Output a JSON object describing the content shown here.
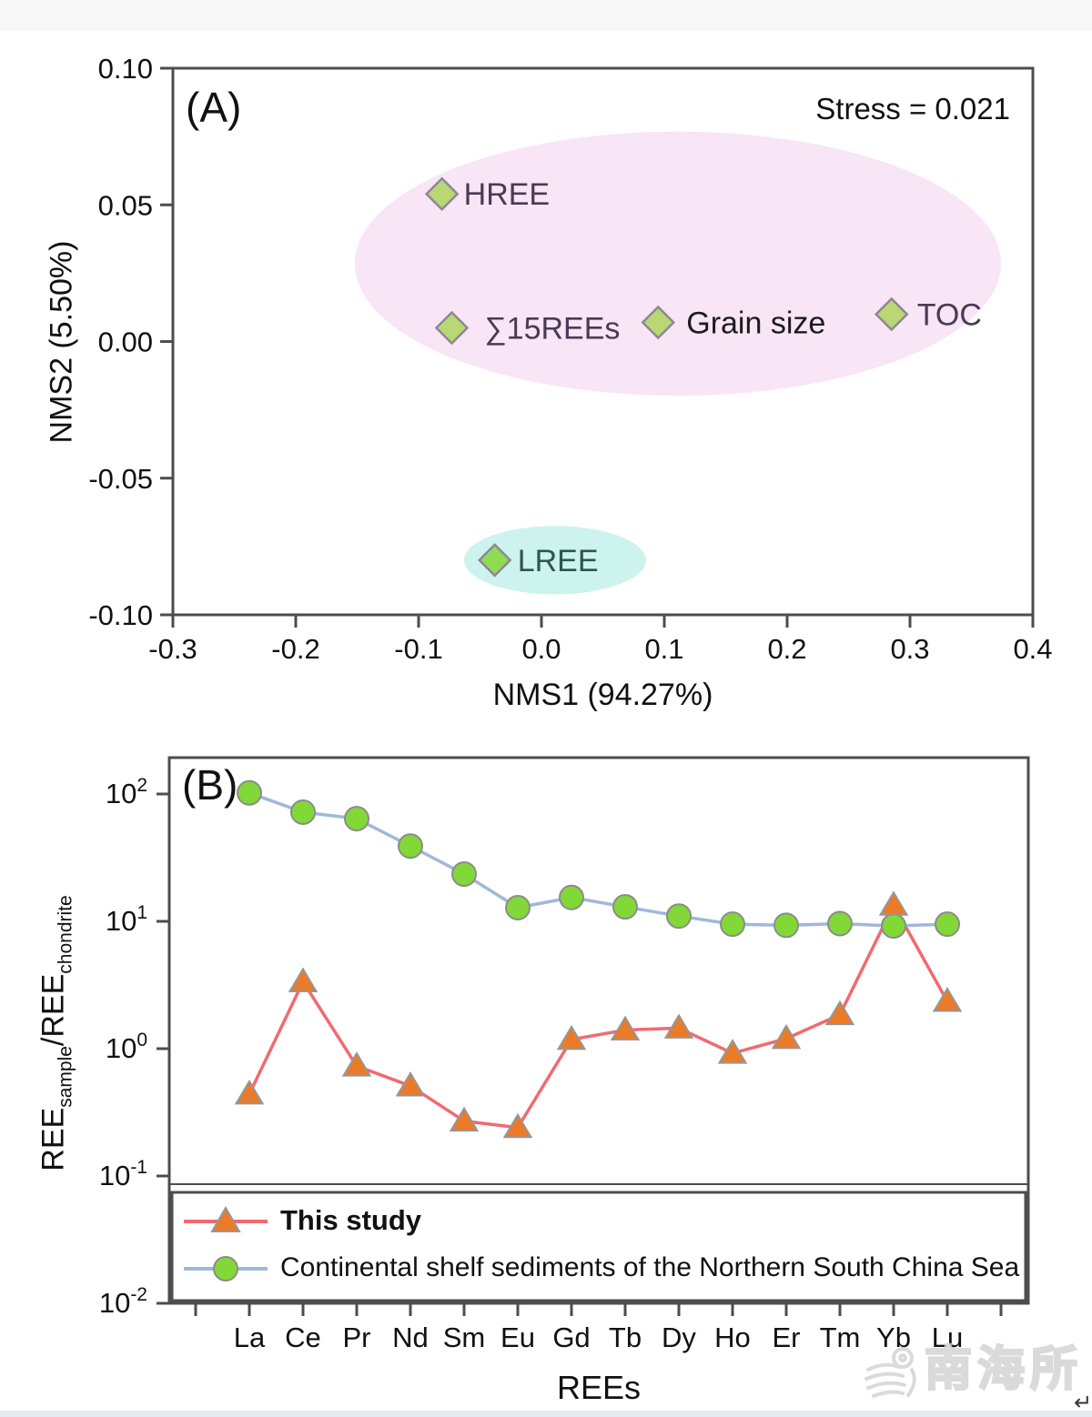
{
  "watermark": {
    "text": "南海所"
  },
  "footer": {
    "return_mark": "↵"
  },
  "chart_data": [
    {
      "id": "A",
      "type": "scatter",
      "panel_label": "(A)",
      "annotation": "Stress = 0.021",
      "xlabel": "NMS1 (94.27%)",
      "ylabel": "NMS2 (5.50%)",
      "xlim": [
        -0.3,
        0.4
      ],
      "ylim": [
        -0.1,
        0.1
      ],
      "grid": false,
      "x_ticks": [
        {
          "v": -0.3,
          "label": "-0.3"
        },
        {
          "v": -0.2,
          "label": "-0.2"
        },
        {
          "v": -0.1,
          "label": "-0.1"
        },
        {
          "v": 0.0,
          "label": "0.0"
        },
        {
          "v": 0.1,
          "label": "0.1"
        },
        {
          "v": 0.2,
          "label": "0.2"
        },
        {
          "v": 0.3,
          "label": "0.3"
        },
        {
          "v": 0.4,
          "label": "0.4"
        }
      ],
      "y_ticks": [
        {
          "v": 0.1,
          "label": "0.10"
        },
        {
          "v": 0.05,
          "label": "0.05"
        },
        {
          "v": 0.0,
          "label": "0.00"
        },
        {
          "v": -0.05,
          "label": "-0.05"
        },
        {
          "v": -0.1,
          "label": "-0.10"
        }
      ],
      "marker": "diamond",
      "points": [
        {
          "name": "HREE",
          "x": -0.081,
          "y": 0.054,
          "label": "HREE",
          "label_color": "#4a3a55",
          "marker_fill": "#b9d873",
          "label_dx": 19
        },
        {
          "name": "sum15REEs",
          "x": -0.073,
          "y": 0.005,
          "label": "∑15REEs",
          "label_color": "#4a3a55",
          "marker_fill": "#b9d873",
          "label_dx": 31
        },
        {
          "name": "grain-size",
          "x": 0.095,
          "y": 0.007,
          "label": "Grain size",
          "label_color": "#1c1c1c",
          "marker_fill": "#b9d873",
          "label_dx": 26
        },
        {
          "name": "TOC",
          "x": 0.285,
          "y": 0.01,
          "label": "TOC",
          "label_color": "#4a3a55",
          "marker_fill": "#b9d873",
          "label_dx": 23
        },
        {
          "name": "LREE",
          "x": -0.038,
          "y": -0.08,
          "label": "LREE",
          "label_color": "#2b574d",
          "marker_fill": "#8fdc52",
          "label_dx": 20
        }
      ],
      "ellipses": [
        {
          "name": "pink-cluster",
          "cx": 0.111,
          "cy": 0.0285,
          "rx": 0.263,
          "ry": 0.0483,
          "fill": "#f8e5f5"
        },
        {
          "name": "cyan-cluster",
          "cx": 0.011,
          "cy": -0.08,
          "rx": 0.074,
          "ry": 0.0125,
          "fill": "#cdf3ee"
        }
      ]
    },
    {
      "id": "B",
      "type": "line",
      "panel_label": "(B)",
      "xlabel": "REEs",
      "ylabel_parts": [
        {
          "text": "REE"
        },
        {
          "text": "sample",
          "sub": true
        },
        {
          "text": "/REE"
        },
        {
          "text": "chondrite",
          "sub": true
        }
      ],
      "y_scale": "log",
      "ylim_exp": [
        -2,
        2
      ],
      "y_tick_exponents": [
        2,
        1,
        0,
        -1,
        -2
      ],
      "grid": false,
      "legend_position": "bottom-box",
      "categories": [
        "La",
        "Ce",
        "Pr",
        "Nd",
        "Sm",
        "Eu",
        "Gd",
        "Tb",
        "Dy",
        "Ho",
        "Er",
        "Tm",
        "Yb",
        "Lu"
      ],
      "series": [
        {
          "name": "This study",
          "marker": "triangle",
          "marker_fill": "#ec7b28",
          "marker_stroke": "#969696",
          "line_color": "#f16a70",
          "values": [
            0.44,
            3.35,
            0.73,
            0.51,
            0.27,
            0.24,
            1.18,
            1.4,
            1.45,
            0.92,
            1.2,
            1.85,
            13.4,
            2.35
          ]
        },
        {
          "name": "Continental shelf sediments of the Northern South China Sea",
          "marker": "circle",
          "marker_fill": "#82d837",
          "marker_stroke": "#8c8c8c",
          "line_color": "#9fb8d8",
          "values": [
            102,
            72,
            64,
            39,
            23.5,
            12.8,
            15.4,
            13.0,
            11.0,
            9.5,
            9.3,
            9.6,
            9.2,
            9.5
          ]
        }
      ]
    }
  ]
}
